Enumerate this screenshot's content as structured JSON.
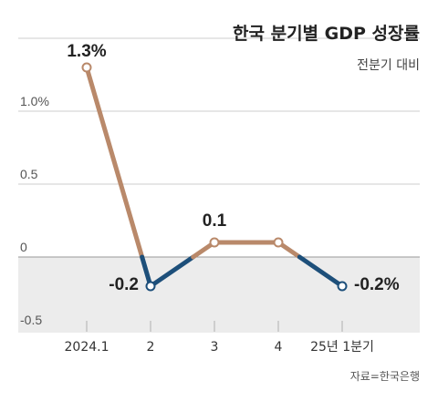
{
  "chart_data": {
    "type": "line",
    "title": "한국 분기별 GDP 성장률",
    "subtitle": "전분기 대비",
    "source": "자료=한국은행",
    "categories": [
      "2024.1",
      "2",
      "3",
      "4",
      "25년 1분기"
    ],
    "values": [
      1.3,
      -0.2,
      0.1,
      0.1,
      -0.2
    ],
    "data_labels": [
      "1.3%",
      "-0.2",
      "0.1",
      "",
      "-0.2%"
    ],
    "y_ticks": [
      {
        "value": 1.0,
        "label": "1.0%"
      },
      {
        "value": 0.5,
        "label": "0.5"
      },
      {
        "value": 0,
        "label": "0"
      },
      {
        "value": -0.5,
        "label": "-0.5"
      }
    ],
    "ylim": [
      -0.5,
      1.5
    ],
    "grid": true,
    "colors": {
      "positive_line": "#b9896a",
      "negative_line": "#1d4f7a",
      "negative_region": "#ececec",
      "grid": "#cccccc",
      "marker_fill": "#ffffff"
    }
  }
}
